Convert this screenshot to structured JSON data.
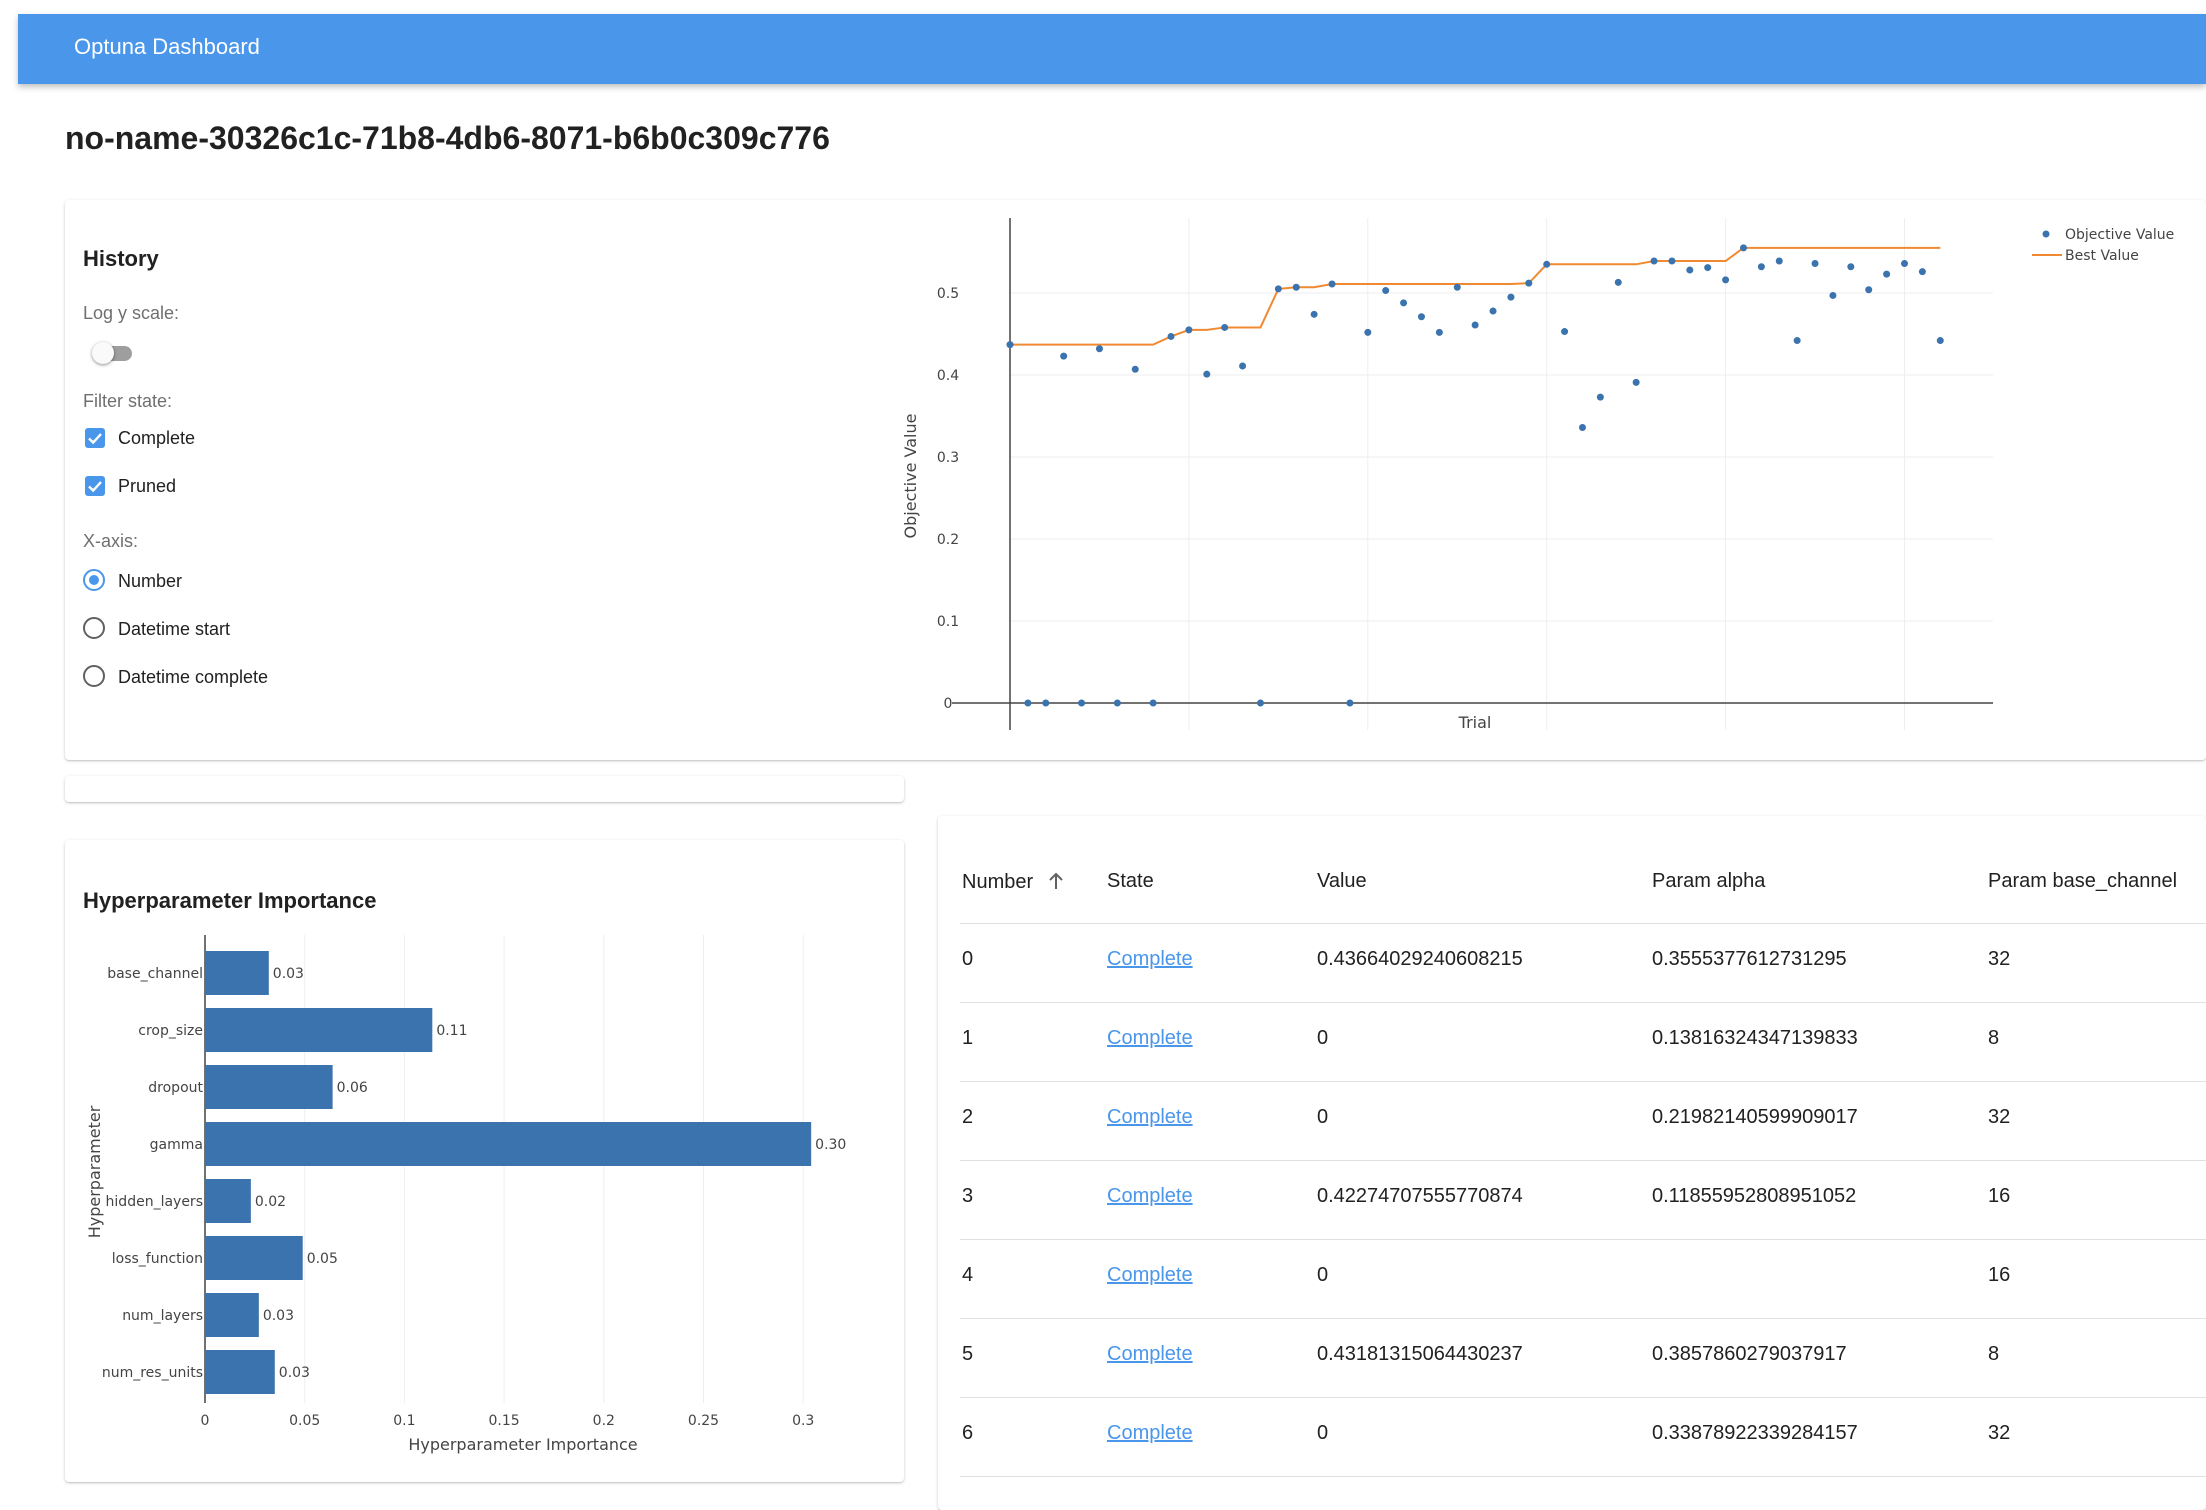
{
  "appbar": {
    "title": "Optuna Dashboard"
  },
  "study": {
    "title": "no-name-30326c1c-71b8-4db6-8071-b6b0c309c776"
  },
  "history": {
    "heading": "History",
    "log_scale_label": "Log y scale:",
    "log_scale_on": false,
    "filter_label": "Filter state:",
    "filters": [
      {
        "label": "Complete",
        "checked": true
      },
      {
        "label": "Pruned",
        "checked": true
      }
    ],
    "xaxis_label": "X-axis:",
    "xaxis_options": [
      {
        "label": "Number",
        "selected": true
      },
      {
        "label": "Datetime start",
        "selected": false
      },
      {
        "label": "Datetime complete",
        "selected": false
      }
    ]
  },
  "importance": {
    "heading": "Hyperparameter Importance"
  },
  "colors": {
    "accent": "#4a96eb",
    "series_blue": "#3a73ad",
    "best_orange": "#f08a32"
  },
  "chart_data": [
    {
      "type": "scatter",
      "title": "",
      "xlabel": "Trial",
      "ylabel": "Objective Value",
      "ylim": [
        0,
        0.55
      ],
      "yticks": [
        "0",
        "0.1",
        "0.2",
        "0.3",
        "0.4",
        "0.5"
      ],
      "grid": true,
      "legend": "top-right",
      "series": [
        {
          "name": "Objective Value",
          "mode": "markers",
          "x": [
            0,
            1,
            2,
            3,
            4,
            5,
            6,
            7,
            8,
            9,
            10,
            11,
            12,
            13,
            14,
            15,
            16,
            17,
            18,
            19,
            20,
            21,
            22,
            23,
            24,
            25,
            26,
            27,
            28,
            29,
            30,
            31,
            32,
            33,
            34,
            35,
            36,
            37,
            38,
            39,
            40,
            41,
            42,
            43,
            44,
            45,
            46,
            47,
            48,
            49,
            50,
            51,
            52
          ],
          "y": [
            0.437,
            0,
            0,
            0.423,
            0,
            0.432,
            0,
            0.407,
            0,
            0.447,
            0.455,
            0.401,
            0.458,
            0.411,
            0,
            0.505,
            0.507,
            0.474,
            0.511,
            0,
            0.452,
            0.503,
            0.488,
            0.471,
            0.452,
            0.507,
            0.461,
            0.478,
            0.495,
            0.512,
            0.535,
            0.453,
            0.336,
            0.373,
            0.513,
            0.391,
            0.539,
            0.539,
            0.528,
            0.531,
            0.516,
            0.555,
            0.532,
            0.539,
            0.442,
            0.536,
            0.497,
            0.532,
            0.504,
            0.523,
            0.536,
            0.526,
            0.442
          ]
        },
        {
          "name": "Best Value",
          "mode": "lines",
          "x": [
            0,
            1,
            2,
            3,
            4,
            5,
            6,
            7,
            8,
            9,
            10,
            11,
            12,
            13,
            14,
            15,
            16,
            17,
            18,
            19,
            20,
            21,
            22,
            23,
            24,
            25,
            26,
            27,
            28,
            29,
            30,
            31,
            32,
            33,
            34,
            35,
            36,
            37,
            38,
            39,
            40,
            41,
            42,
            43,
            44,
            45,
            46,
            47,
            48,
            49,
            50,
            51,
            52
          ],
          "y": [
            0.437,
            0.437,
            0.437,
            0.437,
            0.437,
            0.437,
            0.437,
            0.437,
            0.437,
            0.447,
            0.455,
            0.455,
            0.458,
            0.458,
            0.458,
            0.505,
            0.507,
            0.507,
            0.511,
            0.511,
            0.511,
            0.511,
            0.511,
            0.511,
            0.511,
            0.511,
            0.511,
            0.511,
            0.511,
            0.512,
            0.535,
            0.535,
            0.535,
            0.535,
            0.535,
            0.535,
            0.539,
            0.539,
            0.539,
            0.539,
            0.539,
            0.555,
            0.555,
            0.555,
            0.555,
            0.555,
            0.555,
            0.555,
            0.555,
            0.555,
            0.555,
            0.555,
            0.555
          ]
        }
      ]
    },
    {
      "type": "bar",
      "orientation": "horizontal",
      "title": "",
      "xlabel": "Hyperparameter Importance",
      "ylabel": "Hyperparameter",
      "xlim": [
        0,
        0.32
      ],
      "xticks": [
        "0",
        "0.05",
        "0.1",
        "0.15",
        "0.2",
        "0.25",
        "0.3"
      ],
      "categories": [
        "base_channel",
        "crop_size",
        "dropout",
        "gamma",
        "hidden_layers",
        "loss_function",
        "num_layers",
        "num_res_units"
      ],
      "values": [
        0.032,
        0.114,
        0.064,
        0.304,
        0.023,
        0.049,
        0.027,
        0.035
      ],
      "labels": [
        "0.03",
        "0.11",
        "0.06",
        "0.30",
        "0.02",
        "0.05",
        "0.03",
        "0.03"
      ]
    }
  ],
  "table": {
    "columns": [
      "Number",
      "State",
      "Value",
      "Param alpha",
      "Param base_channel"
    ],
    "rows": [
      [
        "0",
        "Complete",
        "0.43664029240608215",
        "0.3555377612731295",
        "32"
      ],
      [
        "1",
        "Complete",
        "0",
        "0.13816324347139833",
        "8"
      ],
      [
        "2",
        "Complete",
        "0",
        "0.21982140599909017",
        "32"
      ],
      [
        "3",
        "Complete",
        "0.42274707555770874",
        "0.11855952808951052",
        "16"
      ],
      [
        "4",
        "Complete",
        "0",
        "",
        "16"
      ],
      [
        "5",
        "Complete",
        "0.43181315064430237",
        "0.3857860279037917",
        "8"
      ],
      [
        "6",
        "Complete",
        "0",
        "0.33878922339284157",
        "32"
      ]
    ]
  }
}
